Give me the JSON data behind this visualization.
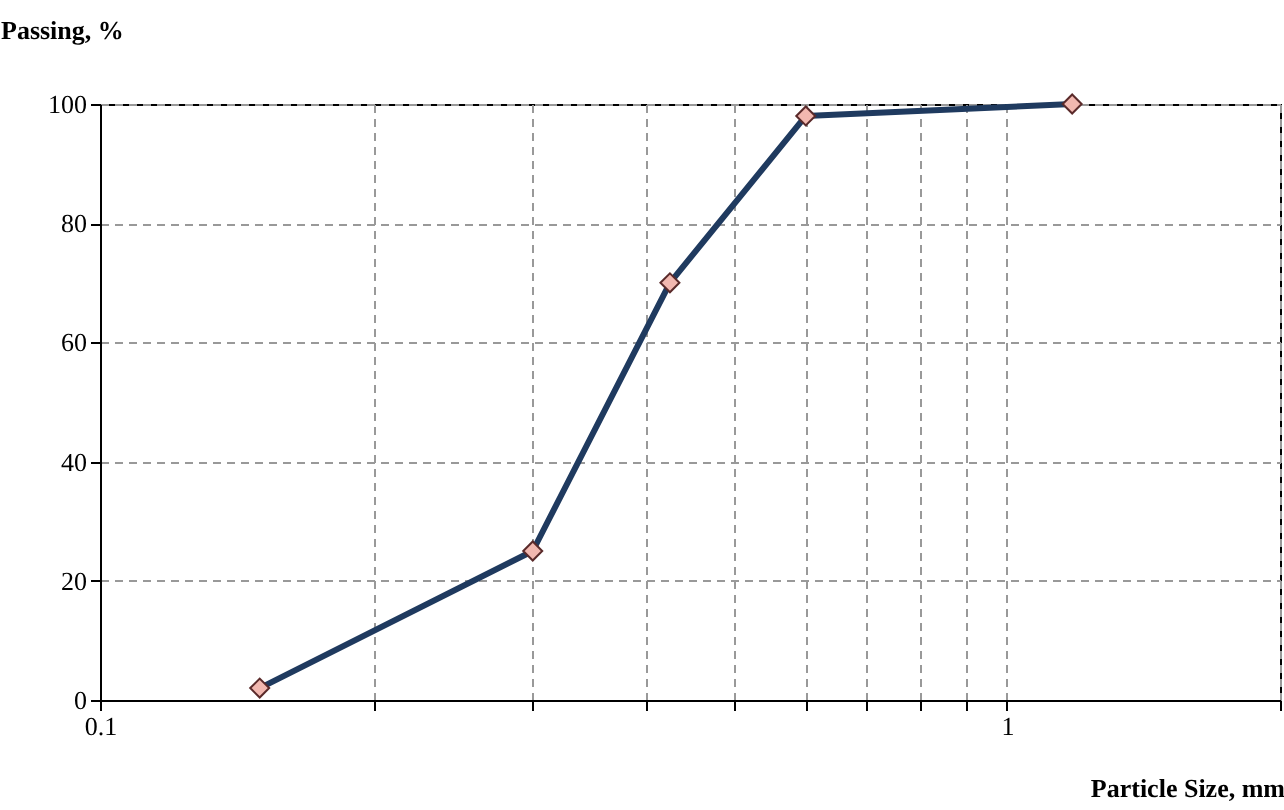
{
  "chart_data": {
    "type": "line",
    "xlabel": "Particle Size, mm",
    "ylabel": "Passing, %",
    "log": "x",
    "x": [
      0.15,
      0.3,
      0.425,
      0.6,
      1.18
    ],
    "series": [
      {
        "color": "#1f3a5f",
        "values": [
          2,
          25,
          70,
          98,
          100
        ]
      }
    ],
    "xlim": [
      0.1,
      2
    ],
    "xticks": [
      0.1,
      {
        "value": 0.2,
        "label": null
      },
      {
        "value": 0.3,
        "label": null
      },
      {
        "value": 0.4,
        "label": null
      },
      {
        "value": 0.5,
        "label": null
      },
      {
        "value": 0.6,
        "label": null
      },
      {
        "value": 0.7,
        "label": null
      },
      {
        "value": 0.8,
        "label": null
      },
      {
        "value": 0.9,
        "label": null
      },
      1,
      {
        "value": 2,
        "label": null
      }
    ],
    "ylim": [
      0,
      100
    ],
    "yticks": [
      0,
      20,
      40,
      60,
      80,
      100
    ],
    "grid": true,
    "marker": "diamond",
    "line_style": "solid"
  }
}
